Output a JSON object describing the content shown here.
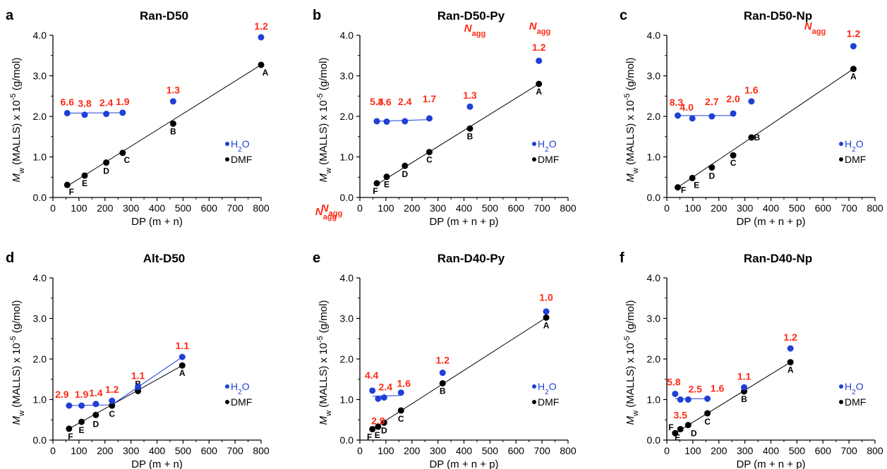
{
  "colors": {
    "h2o": "#1f3fd6",
    "dmf": "#000000",
    "nagg": "#ff2a16"
  },
  "legend": {
    "h2o": "H2O",
    "dmf": "DMF"
  },
  "nagg_title": "N",
  "nagg_subscript": "agg",
  "chart_data": [
    {
      "panel": "a",
      "type": "scatter",
      "title": "Ran-D50",
      "xlabel": "DP (m + n)",
      "ylabel": "Mw (MALLS) x 10-5 (g/mol)",
      "xlim": [
        0,
        800
      ],
      "ylim": [
        0,
        4.0
      ],
      "x_ticks": [
        "0",
        "100",
        "200",
        "300",
        "400",
        "500",
        "600",
        "700",
        "800"
      ],
      "y_ticks": [
        "0.0",
        "1.0",
        "2.0",
        "3.0",
        "4.0"
      ],
      "dmf": [
        {
          "label": "F",
          "x": 55,
          "y": 0.31
        },
        {
          "label": "E",
          "x": 122,
          "y": 0.54
        },
        {
          "label": "D",
          "x": 205,
          "y": 0.86
        },
        {
          "label": "C",
          "x": 268,
          "y": 1.1
        },
        {
          "label": "B",
          "x": 462,
          "y": 1.82
        },
        {
          "label": "A",
          "x": 800,
          "y": 3.27
        }
      ],
      "h2o": [
        {
          "x": 55,
          "y": 2.08,
          "nagg": "6.6"
        },
        {
          "x": 122,
          "y": 2.04,
          "nagg": "3.8"
        },
        {
          "x": 205,
          "y": 2.06,
          "nagg": "2.4"
        },
        {
          "x": 268,
          "y": 2.09,
          "nagg": "1.9"
        },
        {
          "x": 462,
          "y": 2.37,
          "nagg": "1.3"
        },
        {
          "x": 800,
          "y": 3.95,
          "nagg": "1.2"
        }
      ],
      "dmf_fit": [
        [
          50,
          0.26
        ],
        [
          800,
          3.27
        ]
      ],
      "h2o_line": [
        [
          55,
          2.08
        ],
        [
          268,
          2.09
        ]
      ],
      "show_nagg_title": true
    },
    {
      "panel": "b",
      "type": "scatter",
      "title": "Ran-D50-Py",
      "xlabel": "DP (m + n + p)",
      "ylabel": "Mw (MALLS) x 10-5 (g/mol)",
      "xlim": [
        0,
        800
      ],
      "ylim": [
        0,
        4.0
      ],
      "x_ticks": [
        "0",
        "100",
        "200",
        "300",
        "400",
        "500",
        "600",
        "700",
        "800"
      ],
      "y_ticks": [
        "0.0",
        "1.0",
        "2.0",
        "3.0",
        "4.0"
      ],
      "dmf": [
        {
          "label": "F",
          "x": 65,
          "y": 0.35
        },
        {
          "label": "E",
          "x": 103,
          "y": 0.51
        },
        {
          "label": "D",
          "x": 173,
          "y": 0.78
        },
        {
          "label": "C",
          "x": 267,
          "y": 1.12
        },
        {
          "label": "B",
          "x": 423,
          "y": 1.7
        },
        {
          "label": "A",
          "x": 688,
          "y": 2.8
        }
      ],
      "h2o": [
        {
          "x": 65,
          "y": 1.88,
          "nagg": "5.4"
        },
        {
          "x": 103,
          "y": 1.87,
          "nagg": "3.6"
        },
        {
          "x": 173,
          "y": 1.88,
          "nagg": "2.4"
        },
        {
          "x": 267,
          "y": 1.95,
          "nagg": "1.7"
        },
        {
          "x": 423,
          "y": 2.24,
          "nagg": "1.3"
        },
        {
          "x": 688,
          "y": 3.37,
          "nagg": "1.2"
        }
      ],
      "dmf_fit": [
        [
          60,
          0.3
        ],
        [
          688,
          2.8
        ]
      ],
      "h2o_line": [
        [
          65,
          1.88
        ],
        [
          267,
          1.92
        ]
      ],
      "show_nagg_title": true
    },
    {
      "panel": "c",
      "type": "scatter",
      "title": "Ran-D50-Np",
      "xlabel": "DP (m + n + p)",
      "ylabel": "Mw (MALLS) x 10-5 (g/mol)",
      "xlim": [
        0,
        800
      ],
      "ylim": [
        0,
        4.0
      ],
      "x_ticks": [
        "0",
        "100",
        "200",
        "300",
        "400",
        "500",
        "600",
        "700",
        "800"
      ],
      "y_ticks": [
        "0.0",
        "1.0",
        "2.0",
        "3.0",
        "4.0"
      ],
      "dmf": [
        {
          "label": "F",
          "x": 42,
          "y": 0.25
        },
        {
          "label": "E",
          "x": 98,
          "y": 0.48
        },
        {
          "label": "D",
          "x": 173,
          "y": 0.74
        },
        {
          "label": "C",
          "x": 255,
          "y": 1.04
        },
        {
          "label": "B",
          "x": 325,
          "y": 1.48
        },
        {
          "label": "A",
          "x": 717,
          "y": 3.17
        }
      ],
      "h2o": [
        {
          "x": 42,
          "y": 2.02,
          "nagg": "8.3"
        },
        {
          "x": 98,
          "y": 1.95,
          "nagg": "4.0"
        },
        {
          "x": 173,
          "y": 2.0,
          "nagg": "2.7"
        },
        {
          "x": 255,
          "y": 2.07,
          "nagg": "2.0"
        },
        {
          "x": 325,
          "y": 2.37,
          "nagg": "1.6"
        },
        {
          "x": 717,
          "y": 3.73,
          "nagg": "1.2"
        }
      ],
      "dmf_fit": [
        [
          42,
          0.25
        ],
        [
          717,
          3.17
        ]
      ],
      "h2o_line": [
        [
          42,
          2.02
        ],
        [
          255,
          2.02
        ]
      ],
      "show_nagg_title": true
    },
    {
      "panel": "d",
      "type": "scatter",
      "title": "Alt-D50",
      "xlabel": "DP (m + n)",
      "ylabel": "Mw (MALLS) x 10-5 (g/mol)",
      "xlim": [
        0,
        800
      ],
      "ylim": [
        0,
        4.0
      ],
      "x_ticks": [
        "0",
        "100",
        "200",
        "300",
        "400",
        "500",
        "600",
        "700",
        "800"
      ],
      "y_ticks": [
        "0.0",
        "1.0",
        "2.0",
        "3.0",
        "4.0"
      ],
      "dmf": [
        {
          "label": "F",
          "x": 62,
          "y": 0.28
        },
        {
          "label": "E",
          "x": 110,
          "y": 0.45
        },
        {
          "label": "D",
          "x": 165,
          "y": 0.62
        },
        {
          "label": "C",
          "x": 227,
          "y": 0.85
        },
        {
          "label": "B",
          "x": 327,
          "y": 1.21
        },
        {
          "label": "A",
          "x": 497,
          "y": 1.84
        }
      ],
      "h2o": [
        {
          "x": 62,
          "y": 0.85,
          "nagg": "2.9"
        },
        {
          "x": 110,
          "y": 0.85,
          "nagg": "1.9"
        },
        {
          "x": 165,
          "y": 0.89,
          "nagg": "1.4"
        },
        {
          "x": 227,
          "y": 0.97,
          "nagg": "1.2"
        },
        {
          "x": 327,
          "y": 1.31,
          "nagg": "1.1"
        },
        {
          "x": 497,
          "y": 2.05,
          "nagg": "1.1"
        }
      ],
      "dmf_fit": [
        [
          62,
          0.28
        ],
        [
          497,
          1.84
        ]
      ],
      "h2o_line": [
        [
          62,
          0.85
        ],
        [
          227,
          0.87
        ],
        [
          497,
          2.05
        ]
      ],
      "show_nagg_title": true
    },
    {
      "panel": "e",
      "type": "scatter",
      "title": "Ran-D40-Py",
      "xlabel": "DP (m + n + p)",
      "ylabel": "Mw (MALLS) x 10-5 (g/mol)",
      "xlim": [
        0,
        800
      ],
      "ylim": [
        0,
        4.0
      ],
      "x_ticks": [
        "0",
        "100",
        "200",
        "300",
        "400",
        "500",
        "600",
        "700",
        "800"
      ],
      "y_ticks": [
        "0.0",
        "1.0",
        "2.0",
        "3.0",
        "4.0"
      ],
      "dmf": [
        {
          "label": "F",
          "x": 48,
          "y": 0.27
        },
        {
          "label": "E",
          "x": 70,
          "y": 0.33
        },
        {
          "label": "D",
          "x": 93,
          "y": 0.43
        },
        {
          "label": "C",
          "x": 158,
          "y": 0.73
        },
        {
          "label": "B",
          "x": 318,
          "y": 1.4
        },
        {
          "label": "A",
          "x": 716,
          "y": 3.02
        }
      ],
      "h2o": [
        {
          "x": 48,
          "y": 1.22,
          "nagg": "4.4"
        },
        {
          "x": 70,
          "y": 1.02,
          "nagg": "2.9"
        },
        {
          "x": 93,
          "y": 1.05,
          "nagg": "2.4"
        },
        {
          "x": 158,
          "y": 1.17,
          "nagg": "1.6"
        },
        {
          "x": 318,
          "y": 1.66,
          "nagg": "1.2"
        },
        {
          "x": 716,
          "y": 3.17,
          "nagg": "1.0"
        }
      ],
      "dmf_fit": [
        [
          48,
          0.27
        ],
        [
          716,
          3.02
        ]
      ],
      "h2o_line": [
        [
          48,
          1.08
        ],
        [
          158,
          1.1
        ]
      ],
      "show_nagg_title": false
    },
    {
      "panel": "f",
      "type": "scatter",
      "title": "Ran-D40-Np",
      "xlabel": "DP (m + n + p)",
      "ylabel": "Mw (MALLS) x 10-5 (g/mol)",
      "xlim": [
        0,
        800
      ],
      "ylim": [
        0,
        4.0
      ],
      "x_ticks": [
        "0",
        "100",
        "200",
        "300",
        "400",
        "500",
        "600",
        "700",
        "800"
      ],
      "y_ticks": [
        "0.0",
        "1.0",
        "2.0",
        "3.0",
        "4.0"
      ],
      "dmf": [
        {
          "label": "F",
          "x": 32,
          "y": 0.17
        },
        {
          "label": "E",
          "x": 52,
          "y": 0.27
        },
        {
          "label": "D",
          "x": 82,
          "y": 0.37
        },
        {
          "label": "C",
          "x": 156,
          "y": 0.66
        },
        {
          "label": "B",
          "x": 297,
          "y": 1.2
        },
        {
          "label": "A",
          "x": 475,
          "y": 1.92
        }
      ],
      "h2o": [
        {
          "x": 32,
          "y": 1.14,
          "nagg": "5.8"
        },
        {
          "x": 52,
          "y": 1.0,
          "nagg": "3.5"
        },
        {
          "x": 82,
          "y": 1.0,
          "nagg": "2.5"
        },
        {
          "x": 156,
          "y": 1.02,
          "nagg": "1.6"
        },
        {
          "x": 297,
          "y": 1.3,
          "nagg": "1.1"
        },
        {
          "x": 475,
          "y": 2.26,
          "nagg": "1.2"
        }
      ],
      "dmf_fit": [
        [
          32,
          0.17
        ],
        [
          475,
          1.92
        ]
      ],
      "h2o_line": [
        [
          32,
          1.02
        ],
        [
          156,
          1.02
        ]
      ],
      "show_nagg_title": true
    }
  ]
}
